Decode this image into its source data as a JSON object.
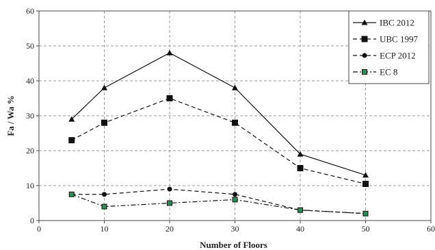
{
  "chart_data": {
    "type": "line",
    "x": [
      5,
      10,
      20,
      30,
      40,
      50
    ],
    "xlabel": "Number of Floors",
    "ylabel": "Fa / Wa %",
    "xlim": [
      0,
      60
    ],
    "ylim": [
      0,
      60
    ],
    "xticks": [
      "0",
      "10",
      "20",
      "30",
      "40",
      "50",
      "60"
    ],
    "yticks": [
      "0",
      "10",
      "20",
      "30",
      "40",
      "50",
      "60"
    ],
    "grid": true,
    "legend_position": "top-right",
    "series": [
      {
        "name": "IBC  2012",
        "values": [
          29,
          38,
          48,
          38,
          19,
          13
        ],
        "marker": "triangle",
        "line": "solid",
        "color": "#111111"
      },
      {
        "name": "UBC 1997",
        "values": [
          23,
          28,
          35,
          28,
          15,
          10.5
        ],
        "marker": "square",
        "line": "dashed",
        "color": "#111111"
      },
      {
        "name": "ECP 2012",
        "values": [
          7.5,
          7.5,
          9,
          7.5,
          3,
          2
        ],
        "marker": "circle",
        "line": "dashed",
        "color": "#111111"
      },
      {
        "name": "EC 8",
        "values": [
          7.5,
          4,
          5,
          6,
          3,
          2
        ],
        "marker": "square-green",
        "line": "dashdot",
        "color": "#111111",
        "marker_fill": "#2e8b57"
      }
    ]
  }
}
